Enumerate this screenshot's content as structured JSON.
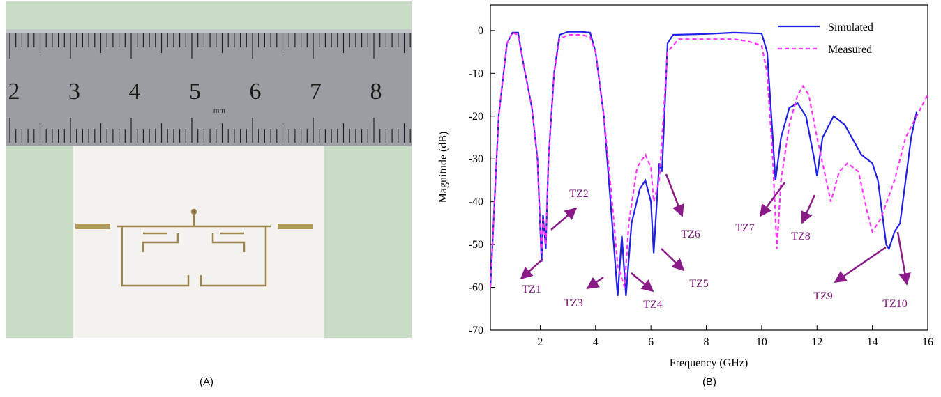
{
  "photo": {
    "ruler_numbers": [
      "2",
      "3",
      "4",
      "5",
      "6",
      "7",
      "8"
    ],
    "ruler_unit": "mm"
  },
  "panel_labels": [
    "(A)",
    "(B)"
  ],
  "chart_data": {
    "type": "line",
    "x_label": "Frequency (GHz)",
    "y_label": "Magnitude (dB)",
    "xlim": [
      0.2,
      16
    ],
    "ylim": [
      -70,
      6
    ],
    "xticks": [
      2,
      4,
      6,
      8,
      10,
      12,
      14,
      16
    ],
    "yticks": [
      0,
      -10,
      -20,
      -30,
      -40,
      -50,
      -60,
      -70
    ],
    "legend": "upper right",
    "series": [
      {
        "name": "Simulated",
        "color": "#1f1fe6",
        "style": "solid",
        "x": [
          0.2,
          0.5,
          0.8,
          1.0,
          1.2,
          1.4,
          1.7,
          1.9,
          2.05,
          2.1,
          2.2,
          2.3,
          2.5,
          2.7,
          3.0,
          3.5,
          3.8,
          4.0,
          4.3,
          4.6,
          4.8,
          4.95,
          5.1,
          5.3,
          5.6,
          5.8,
          6.0,
          6.1,
          6.3,
          6.4,
          6.6,
          6.8,
          8,
          9,
          10,
          10.2,
          10.4,
          10.5,
          10.7,
          11.0,
          11.3,
          11.6,
          11.9,
          12.0,
          12.2,
          12.6,
          13.0,
          13.6,
          14.0,
          14.2,
          14.5,
          14.6,
          14.8,
          15.0,
          15.4,
          15.6
        ],
        "values": [
          -60,
          -20,
          -3,
          -0.5,
          -0.5,
          -8,
          -18,
          -30,
          -54,
          -43,
          -51,
          -30,
          -10,
          -1,
          -0.3,
          -0.3,
          -0.5,
          -5,
          -20,
          -45,
          -62,
          -48,
          -62,
          -45,
          -37,
          -35,
          -40,
          -52,
          -31,
          -33,
          -3,
          -1,
          -0.8,
          -0.5,
          -0.7,
          -5,
          -25,
          -35,
          -25,
          -18,
          -17,
          -20,
          -30,
          -34,
          -25,
          -20,
          -22,
          -29,
          -31,
          -35,
          -50,
          -51,
          -47,
          -45,
          -25,
          -19
        ]
      },
      {
        "name": "Measured",
        "color": "#ff33ff",
        "style": "dashed",
        "x": [
          0.2,
          0.5,
          0.8,
          1.0,
          1.2,
          1.4,
          1.7,
          1.9,
          2.05,
          2.1,
          2.2,
          2.3,
          2.5,
          2.7,
          3.0,
          3.5,
          3.8,
          4.0,
          4.3,
          4.6,
          4.8,
          4.9,
          5.05,
          5.2,
          5.5,
          5.8,
          6.0,
          6.1,
          6.3,
          6.6,
          7.0,
          8,
          9,
          9.5,
          10,
          10.2,
          10.4,
          10.55,
          10.7,
          11.0,
          11.3,
          11.5,
          11.7,
          12.0,
          12.3,
          12.5,
          12.8,
          13.1,
          13.5,
          13.8,
          14.0,
          14.3,
          14.8,
          15.2,
          15.6,
          16.0
        ],
        "values": [
          -60,
          -20,
          -3,
          -0.5,
          -1,
          -8,
          -18,
          -30,
          -52,
          -44,
          -50,
          -30,
          -10,
          -2,
          -1,
          -1,
          -1.5,
          -5,
          -20,
          -40,
          -55,
          -57,
          -60,
          -45,
          -32,
          -29,
          -32,
          -40,
          -35,
          -5,
          -2,
          -2,
          -2,
          -2.5,
          -3.5,
          -10,
          -30,
          -51,
          -35,
          -22,
          -15,
          -13,
          -15,
          -25,
          -34,
          -40,
          -33,
          -31,
          -33,
          -42,
          -47,
          -44,
          -35,
          -25,
          -20,
          -15
        ]
      }
    ],
    "annotations": [
      "TZ1",
      "TZ2",
      "TZ3",
      "TZ4",
      "TZ5",
      "TZ6",
      "TZ7",
      "TZ8",
      "TZ9",
      "TZ10"
    ]
  }
}
